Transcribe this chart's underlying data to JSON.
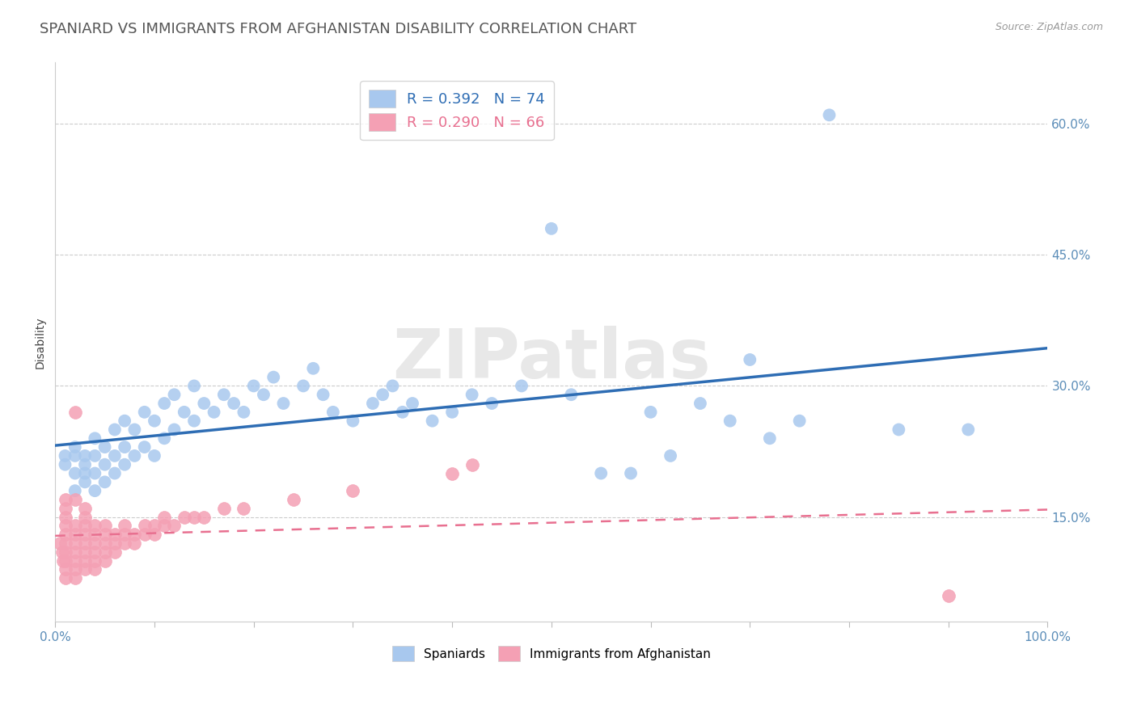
{
  "title": "SPANIARD VS IMMIGRANTS FROM AFGHANISTAN DISABILITY CORRELATION CHART",
  "source": "Source: ZipAtlas.com",
  "ylabel": "Disability",
  "xlim": [
    0.0,
    1.0
  ],
  "ylim": [
    0.03,
    0.67
  ],
  "xticks": [
    0.0,
    0.1,
    0.2,
    0.3,
    0.4,
    0.5,
    0.6,
    0.7,
    0.8,
    0.9,
    1.0
  ],
  "yticks": [
    0.15,
    0.3,
    0.45,
    0.6
  ],
  "yticklabels": [
    "15.0%",
    "30.0%",
    "45.0%",
    "60.0%"
  ],
  "r_spaniard": 0.392,
  "n_spaniard": 74,
  "r_afghan": 0.29,
  "n_afghan": 66,
  "blue_color": "#A8C8EE",
  "pink_color": "#F4A0B4",
  "blue_line_color": "#2E6DB4",
  "pink_line_color": "#E87090",
  "watermark": "ZIPatlas",
  "title_fontsize": 13,
  "tick_fontsize": 11,
  "ylabel_fontsize": 10,
  "spaniard_x": [
    0.01,
    0.01,
    0.02,
    0.02,
    0.02,
    0.02,
    0.03,
    0.03,
    0.03,
    0.03,
    0.04,
    0.04,
    0.04,
    0.04,
    0.05,
    0.05,
    0.05,
    0.06,
    0.06,
    0.06,
    0.07,
    0.07,
    0.07,
    0.08,
    0.08,
    0.09,
    0.09,
    0.1,
    0.1,
    0.11,
    0.11,
    0.12,
    0.12,
    0.13,
    0.14,
    0.14,
    0.15,
    0.16,
    0.17,
    0.18,
    0.19,
    0.2,
    0.21,
    0.22,
    0.23,
    0.25,
    0.26,
    0.27,
    0.28,
    0.3,
    0.32,
    0.33,
    0.34,
    0.35,
    0.36,
    0.38,
    0.4,
    0.42,
    0.44,
    0.47,
    0.5,
    0.52,
    0.55,
    0.58,
    0.6,
    0.62,
    0.65,
    0.68,
    0.7,
    0.72,
    0.75,
    0.78,
    0.85,
    0.92
  ],
  "spaniard_y": [
    0.21,
    0.22,
    0.18,
    0.2,
    0.22,
    0.23,
    0.19,
    0.2,
    0.21,
    0.22,
    0.18,
    0.2,
    0.22,
    0.24,
    0.19,
    0.21,
    0.23,
    0.2,
    0.22,
    0.25,
    0.21,
    0.23,
    0.26,
    0.22,
    0.25,
    0.23,
    0.27,
    0.22,
    0.26,
    0.24,
    0.28,
    0.25,
    0.29,
    0.27,
    0.26,
    0.3,
    0.28,
    0.27,
    0.29,
    0.28,
    0.27,
    0.3,
    0.29,
    0.31,
    0.28,
    0.3,
    0.32,
    0.29,
    0.27,
    0.26,
    0.28,
    0.29,
    0.3,
    0.27,
    0.28,
    0.26,
    0.27,
    0.29,
    0.28,
    0.3,
    0.48,
    0.29,
    0.2,
    0.2,
    0.27,
    0.22,
    0.28,
    0.26,
    0.33,
    0.24,
    0.26,
    0.61,
    0.25,
    0.25
  ],
  "afghan_x": [
    0.005,
    0.007,
    0.008,
    0.01,
    0.01,
    0.01,
    0.01,
    0.01,
    0.01,
    0.01,
    0.01,
    0.01,
    0.01,
    0.02,
    0.02,
    0.02,
    0.02,
    0.02,
    0.02,
    0.02,
    0.02,
    0.02,
    0.03,
    0.03,
    0.03,
    0.03,
    0.03,
    0.03,
    0.03,
    0.03,
    0.04,
    0.04,
    0.04,
    0.04,
    0.04,
    0.04,
    0.05,
    0.05,
    0.05,
    0.05,
    0.05,
    0.06,
    0.06,
    0.06,
    0.07,
    0.07,
    0.07,
    0.08,
    0.08,
    0.09,
    0.09,
    0.1,
    0.1,
    0.11,
    0.11,
    0.12,
    0.13,
    0.14,
    0.15,
    0.17,
    0.19,
    0.24,
    0.3,
    0.4,
    0.42,
    0.9
  ],
  "afghan_y": [
    0.12,
    0.11,
    0.1,
    0.08,
    0.09,
    0.1,
    0.11,
    0.12,
    0.13,
    0.14,
    0.15,
    0.16,
    0.17,
    0.08,
    0.09,
    0.1,
    0.11,
    0.12,
    0.13,
    0.14,
    0.27,
    0.17,
    0.09,
    0.1,
    0.11,
    0.12,
    0.13,
    0.14,
    0.15,
    0.16,
    0.09,
    0.1,
    0.11,
    0.12,
    0.13,
    0.14,
    0.1,
    0.11,
    0.12,
    0.13,
    0.14,
    0.11,
    0.12,
    0.13,
    0.12,
    0.13,
    0.14,
    0.12,
    0.13,
    0.13,
    0.14,
    0.13,
    0.14,
    0.14,
    0.15,
    0.14,
    0.15,
    0.15,
    0.15,
    0.16,
    0.16,
    0.17,
    0.18,
    0.2,
    0.21,
    0.06
  ]
}
